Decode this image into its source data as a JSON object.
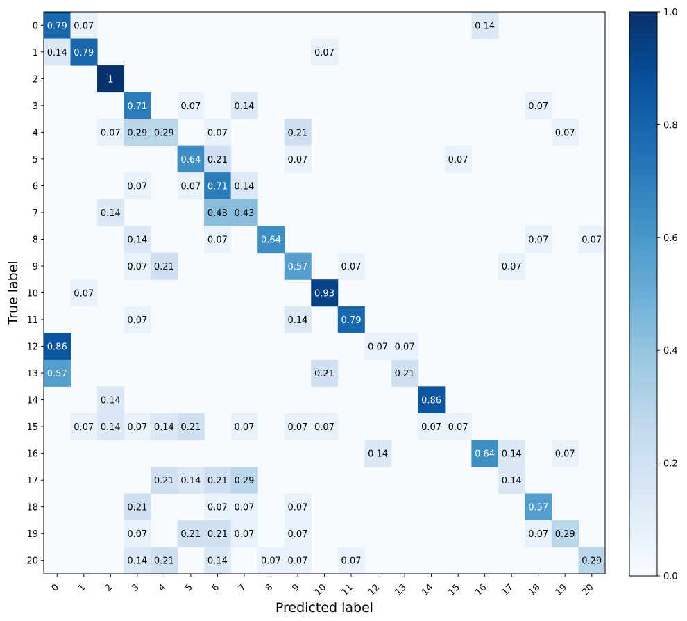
{
  "chart_data": {
    "type": "heatmap",
    "title": "",
    "xlabel": "Predicted label",
    "ylabel": "True label",
    "x_tick_labels": [
      "0",
      "1",
      "2",
      "3",
      "4",
      "5",
      "6",
      "7",
      "8",
      "9",
      "10",
      "11",
      "12",
      "13",
      "14",
      "15",
      "16",
      "17",
      "18",
      "19",
      "20"
    ],
    "y_tick_labels": [
      "0",
      "1",
      "2",
      "3",
      "4",
      "5",
      "6",
      "7",
      "8",
      "9",
      "10",
      "11",
      "12",
      "13",
      "14",
      "15",
      "16",
      "17",
      "18",
      "19",
      "20"
    ],
    "colormap": "Blues",
    "colorbar": {
      "range": [
        0.0,
        1.0
      ],
      "ticks": [
        0.0,
        0.2,
        0.4,
        0.6,
        0.8,
        1.0
      ],
      "tick_labels": [
        "0.0",
        "0.2",
        "0.4",
        "0.6",
        "0.8",
        "1.0"
      ]
    },
    "cells": [
      {
        "row": 0,
        "col": 0,
        "value": 0.79,
        "label": "0.79"
      },
      {
        "row": 0,
        "col": 1,
        "value": 0.07,
        "label": "0.07"
      },
      {
        "row": 0,
        "col": 16,
        "value": 0.14,
        "label": "0.14"
      },
      {
        "row": 1,
        "col": 0,
        "value": 0.14,
        "label": "0.14"
      },
      {
        "row": 1,
        "col": 1,
        "value": 0.79,
        "label": "0.79"
      },
      {
        "row": 1,
        "col": 10,
        "value": 0.07,
        "label": "0.07"
      },
      {
        "row": 2,
        "col": 2,
        "value": 1.0,
        "label": "1"
      },
      {
        "row": 3,
        "col": 3,
        "value": 0.71,
        "label": "0.71"
      },
      {
        "row": 3,
        "col": 5,
        "value": 0.07,
        "label": "0.07"
      },
      {
        "row": 3,
        "col": 7,
        "value": 0.14,
        "label": "0.14"
      },
      {
        "row": 3,
        "col": 18,
        "value": 0.07,
        "label": "0.07"
      },
      {
        "row": 4,
        "col": 2,
        "value": 0.07,
        "label": "0.07"
      },
      {
        "row": 4,
        "col": 3,
        "value": 0.29,
        "label": "0.29"
      },
      {
        "row": 4,
        "col": 4,
        "value": 0.29,
        "label": "0.29"
      },
      {
        "row": 4,
        "col": 6,
        "value": 0.07,
        "label": "0.07"
      },
      {
        "row": 4,
        "col": 9,
        "value": 0.21,
        "label": "0.21"
      },
      {
        "row": 4,
        "col": 19,
        "value": 0.07,
        "label": "0.07"
      },
      {
        "row": 5,
        "col": 5,
        "value": 0.64,
        "label": "0.64"
      },
      {
        "row": 5,
        "col": 6,
        "value": 0.21,
        "label": "0.21"
      },
      {
        "row": 5,
        "col": 9,
        "value": 0.07,
        "label": "0.07"
      },
      {
        "row": 5,
        "col": 15,
        "value": 0.07,
        "label": "0.07"
      },
      {
        "row": 6,
        "col": 3,
        "value": 0.07,
        "label": "0.07"
      },
      {
        "row": 6,
        "col": 5,
        "value": 0.07,
        "label": "0.07"
      },
      {
        "row": 6,
        "col": 6,
        "value": 0.71,
        "label": "0.71"
      },
      {
        "row": 6,
        "col": 7,
        "value": 0.14,
        "label": "0.14"
      },
      {
        "row": 7,
        "col": 2,
        "value": 0.14,
        "label": "0.14"
      },
      {
        "row": 7,
        "col": 6,
        "value": 0.43,
        "label": "0.43"
      },
      {
        "row": 7,
        "col": 7,
        "value": 0.43,
        "label": "0.43"
      },
      {
        "row": 8,
        "col": 3,
        "value": 0.14,
        "label": "0.14"
      },
      {
        "row": 8,
        "col": 6,
        "value": 0.07,
        "label": "0.07"
      },
      {
        "row": 8,
        "col": 8,
        "value": 0.64,
        "label": "0.64"
      },
      {
        "row": 8,
        "col": 18,
        "value": 0.07,
        "label": "0.07"
      },
      {
        "row": 8,
        "col": 20,
        "value": 0.07,
        "label": "0.07"
      },
      {
        "row": 9,
        "col": 3,
        "value": 0.07,
        "label": "0.07"
      },
      {
        "row": 9,
        "col": 4,
        "value": 0.21,
        "label": "0.21"
      },
      {
        "row": 9,
        "col": 9,
        "value": 0.57,
        "label": "0.57"
      },
      {
        "row": 9,
        "col": 11,
        "value": 0.07,
        "label": "0.07"
      },
      {
        "row": 9,
        "col": 17,
        "value": 0.07,
        "label": "0.07"
      },
      {
        "row": 10,
        "col": 1,
        "value": 0.07,
        "label": "0.07"
      },
      {
        "row": 10,
        "col": 10,
        "value": 0.93,
        "label": "0.93"
      },
      {
        "row": 11,
        "col": 3,
        "value": 0.07,
        "label": "0.07"
      },
      {
        "row": 11,
        "col": 9,
        "value": 0.14,
        "label": "0.14"
      },
      {
        "row": 11,
        "col": 11,
        "value": 0.79,
        "label": "0.79"
      },
      {
        "row": 12,
        "col": 0,
        "value": 0.86,
        "label": "0.86"
      },
      {
        "row": 12,
        "col": 12,
        "value": 0.07,
        "label": "0.07"
      },
      {
        "row": 12,
        "col": 13,
        "value": 0.07,
        "label": "0.07"
      },
      {
        "row": 13,
        "col": 0,
        "value": 0.57,
        "label": "0.57"
      },
      {
        "row": 13,
        "col": 10,
        "value": 0.21,
        "label": "0.21"
      },
      {
        "row": 13,
        "col": 13,
        "value": 0.21,
        "label": "0.21"
      },
      {
        "row": 14,
        "col": 2,
        "value": 0.14,
        "label": "0.14"
      },
      {
        "row": 14,
        "col": 14,
        "value": 0.86,
        "label": "0.86"
      },
      {
        "row": 15,
        "col": 1,
        "value": 0.07,
        "label": "0.07"
      },
      {
        "row": 15,
        "col": 2,
        "value": 0.14,
        "label": "0.14"
      },
      {
        "row": 15,
        "col": 3,
        "value": 0.07,
        "label": "0.07"
      },
      {
        "row": 15,
        "col": 4,
        "value": 0.14,
        "label": "0.14"
      },
      {
        "row": 15,
        "col": 5,
        "value": 0.21,
        "label": "0.21"
      },
      {
        "row": 15,
        "col": 7,
        "value": 0.07,
        "label": "0.07"
      },
      {
        "row": 15,
        "col": 9,
        "value": 0.07,
        "label": "0.07"
      },
      {
        "row": 15,
        "col": 10,
        "value": 0.07,
        "label": "0.07"
      },
      {
        "row": 15,
        "col": 14,
        "value": 0.07,
        "label": "0.07"
      },
      {
        "row": 15,
        "col": 15,
        "value": 0.07,
        "label": "0.07"
      },
      {
        "row": 16,
        "col": 12,
        "value": 0.14,
        "label": "0.14"
      },
      {
        "row": 16,
        "col": 16,
        "value": 0.64,
        "label": "0.64"
      },
      {
        "row": 16,
        "col": 17,
        "value": 0.14,
        "label": "0.14"
      },
      {
        "row": 16,
        "col": 19,
        "value": 0.07,
        "label": "0.07"
      },
      {
        "row": 17,
        "col": 4,
        "value": 0.21,
        "label": "0.21"
      },
      {
        "row": 17,
        "col": 5,
        "value": 0.14,
        "label": "0.14"
      },
      {
        "row": 17,
        "col": 6,
        "value": 0.21,
        "label": "0.21"
      },
      {
        "row": 17,
        "col": 7,
        "value": 0.29,
        "label": "0.29"
      },
      {
        "row": 17,
        "col": 17,
        "value": 0.14,
        "label": "0.14"
      },
      {
        "row": 18,
        "col": 3,
        "value": 0.21,
        "label": "0.21"
      },
      {
        "row": 18,
        "col": 6,
        "value": 0.07,
        "label": "0.07"
      },
      {
        "row": 18,
        "col": 7,
        "value": 0.07,
        "label": "0.07"
      },
      {
        "row": 18,
        "col": 9,
        "value": 0.07,
        "label": "0.07"
      },
      {
        "row": 18,
        "col": 18,
        "value": 0.57,
        "label": "0.57"
      },
      {
        "row": 19,
        "col": 3,
        "value": 0.07,
        "label": "0.07"
      },
      {
        "row": 19,
        "col": 5,
        "value": 0.21,
        "label": "0.21"
      },
      {
        "row": 19,
        "col": 6,
        "value": 0.21,
        "label": "0.21"
      },
      {
        "row": 19,
        "col": 7,
        "value": 0.07,
        "label": "0.07"
      },
      {
        "row": 19,
        "col": 9,
        "value": 0.07,
        "label": "0.07"
      },
      {
        "row": 19,
        "col": 18,
        "value": 0.07,
        "label": "0.07"
      },
      {
        "row": 19,
        "col": 19,
        "value": 0.29,
        "label": "0.29"
      },
      {
        "row": 20,
        "col": 3,
        "value": 0.14,
        "label": "0.14"
      },
      {
        "row": 20,
        "col": 4,
        "value": 0.21,
        "label": "0.21"
      },
      {
        "row": 20,
        "col": 6,
        "value": 0.14,
        "label": "0.14"
      },
      {
        "row": 20,
        "col": 8,
        "value": 0.07,
        "label": "0.07"
      },
      {
        "row": 20,
        "col": 9,
        "value": 0.07,
        "label": "0.07"
      },
      {
        "row": 20,
        "col": 11,
        "value": 0.07,
        "label": "0.07"
      },
      {
        "row": 20,
        "col": 20,
        "value": 0.29,
        "label": "0.29"
      }
    ]
  }
}
